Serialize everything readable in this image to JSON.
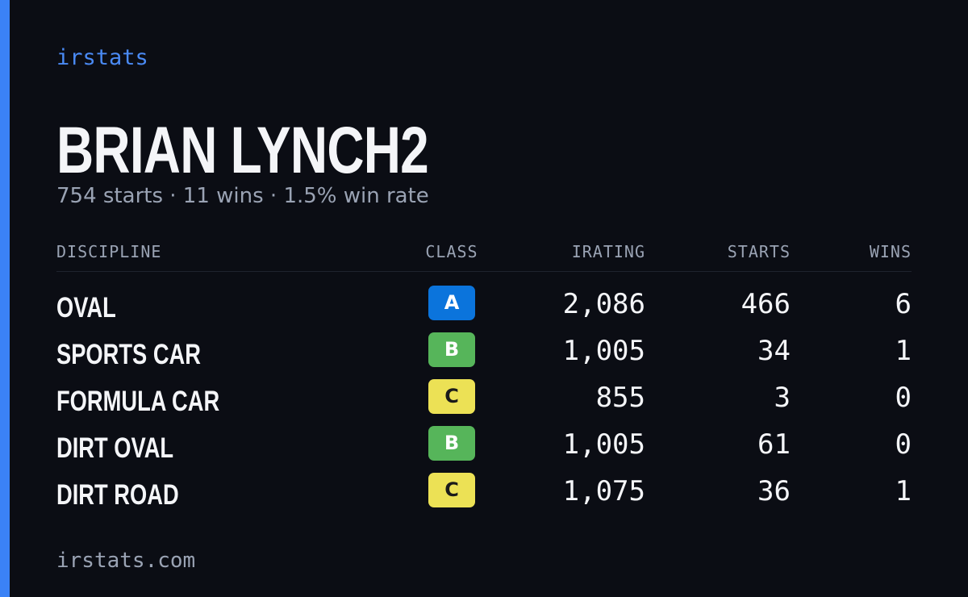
{
  "brand": "irstats",
  "header": {
    "name": "BRIAN LYNCH2",
    "subtitle": "754 starts · 11 wins · 1.5% win rate"
  },
  "table": {
    "columns": [
      "DISCIPLINE",
      "CLASS",
      "IRATING",
      "STARTS",
      "WINS"
    ],
    "rows": [
      {
        "discipline": "OVAL",
        "class": "A",
        "class_color": "#0b74dc",
        "class_text_color": "#ffffff",
        "irating": "2,086",
        "starts": "466",
        "wins": "6"
      },
      {
        "discipline": "SPORTS CAR",
        "class": "B",
        "class_color": "#56b55a",
        "class_text_color": "#ffffff",
        "irating": "1,005",
        "starts": "34",
        "wins": "1"
      },
      {
        "discipline": "FORMULA CAR",
        "class": "C",
        "class_color": "#ece155",
        "class_text_color": "#1a1a1a",
        "irating": "855",
        "starts": "3",
        "wins": "0"
      },
      {
        "discipline": "DIRT OVAL",
        "class": "B",
        "class_color": "#56b55a",
        "class_text_color": "#ffffff",
        "irating": "1,005",
        "starts": "61",
        "wins": "0"
      },
      {
        "discipline": "DIRT ROAD",
        "class": "C",
        "class_color": "#ece155",
        "class_text_color": "#1a1a1a",
        "irating": "1,075",
        "starts": "36",
        "wins": "1"
      }
    ]
  },
  "footer": "irstats.com"
}
